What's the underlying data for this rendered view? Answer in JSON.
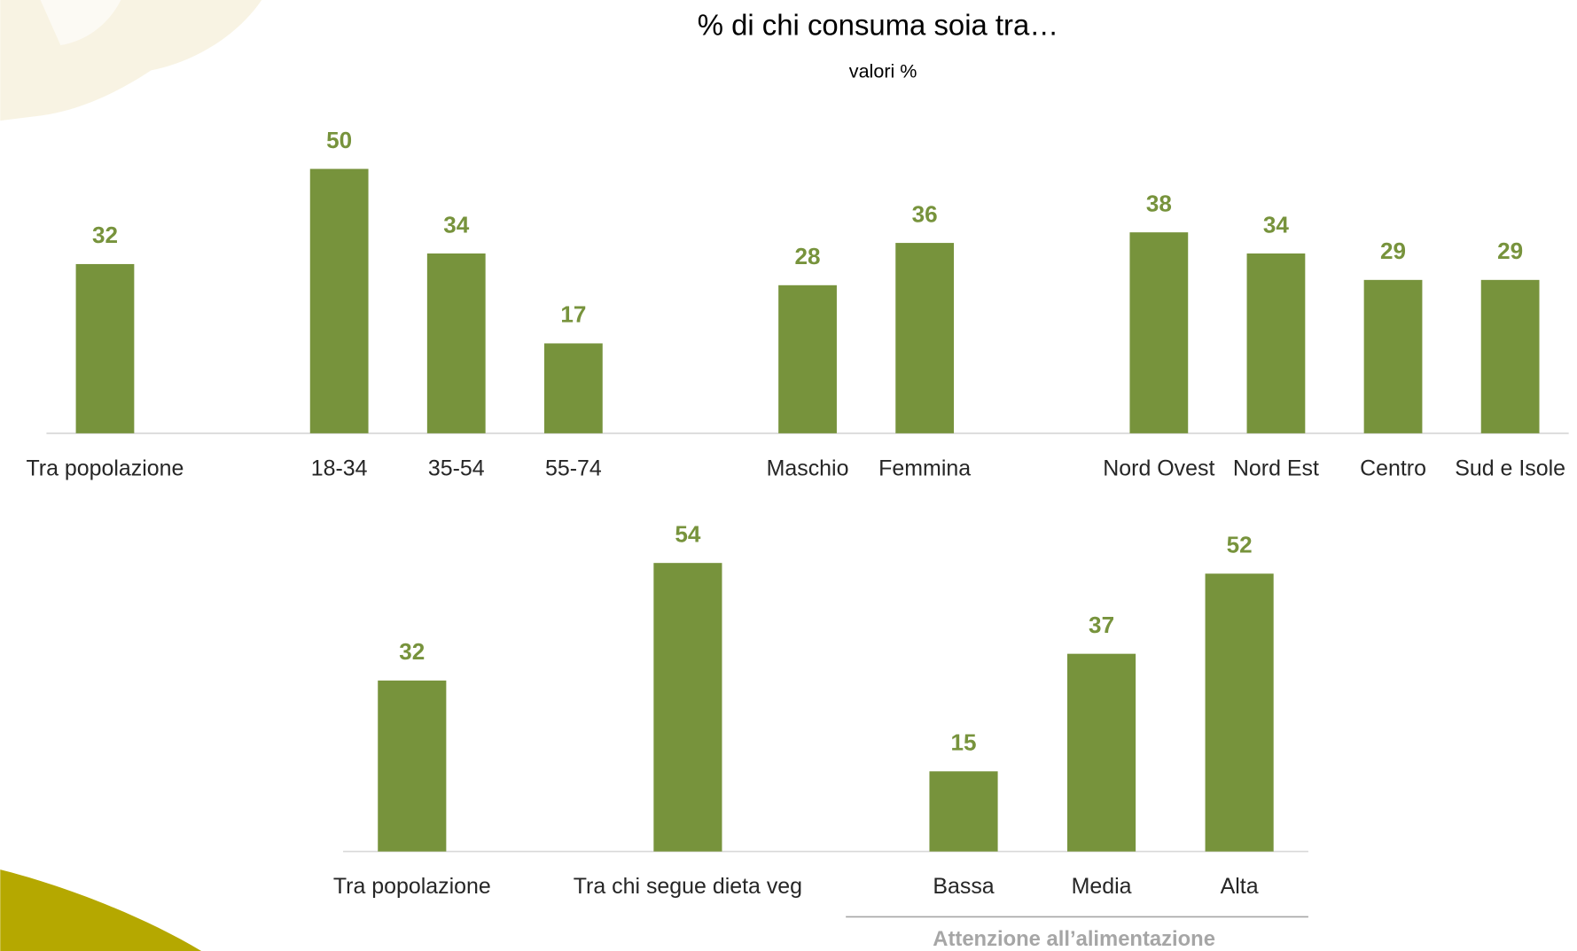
{
  "chart_data": [
    {
      "type": "bar",
      "title": "% di chi consuma soia tra…",
      "subtitle": "valori %",
      "categories": [
        "Tra popolazione",
        null,
        "18-34",
        "35-54",
        "55-74",
        null,
        "Maschio",
        "Femmina",
        null,
        "Nord Ovest",
        "Nord Est",
        "Centro",
        "Sud e Isole"
      ],
      "values": [
        32,
        null,
        50,
        34,
        17,
        null,
        28,
        36,
        null,
        38,
        34,
        29,
        29
      ],
      "color": "#77933c",
      "ylim": [
        0,
        50
      ],
      "grid": false
    },
    {
      "type": "bar",
      "categories": [
        "Tra popolazione",
        null,
        "Tra chi segue dieta veg",
        null,
        "Bassa",
        "Media",
        "Alta"
      ],
      "values": [
        32,
        null,
        54,
        null,
        15,
        37,
        52
      ],
      "color": "#77933c",
      "ylim": [
        0,
        54
      ],
      "grid": false,
      "annotation": "Attenzione all’alimentazione"
    }
  ]
}
